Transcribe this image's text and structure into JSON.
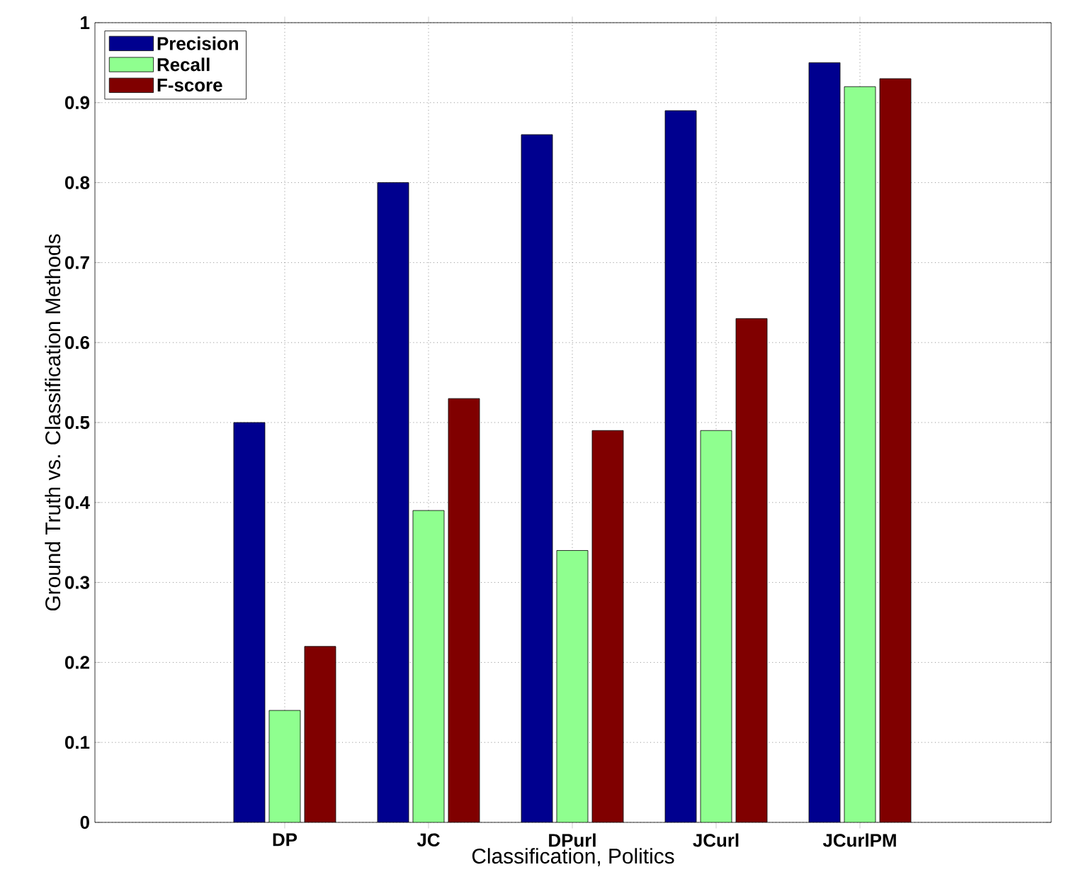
{
  "chart_data": {
    "type": "bar",
    "xlabel": "Classification, Politics",
    "ylabel": "Ground Truth vs. Classification Methods",
    "categories": [
      "DP",
      "JC",
      "DPurl",
      "JCurl",
      "JCurlPM"
    ],
    "series": [
      {
        "name": "Precision",
        "color": "#00008f",
        "values": [
          0.5,
          0.8,
          0.86,
          0.89,
          0.95
        ]
      },
      {
        "name": "Recall",
        "color": "#8fff8f",
        "values": [
          0.14,
          0.39,
          0.34,
          0.49,
          0.92
        ]
      },
      {
        "name": "F-score",
        "color": "#800000",
        "values": [
          0.22,
          0.53,
          0.49,
          0.63,
          0.93
        ]
      }
    ],
    "ylim": [
      0,
      1
    ],
    "yticks": [
      0,
      0.1,
      0.2,
      0.3,
      0.4,
      0.5,
      0.6,
      0.7,
      0.8,
      0.9,
      1
    ],
    "grid": true,
    "legend": "top left"
  }
}
